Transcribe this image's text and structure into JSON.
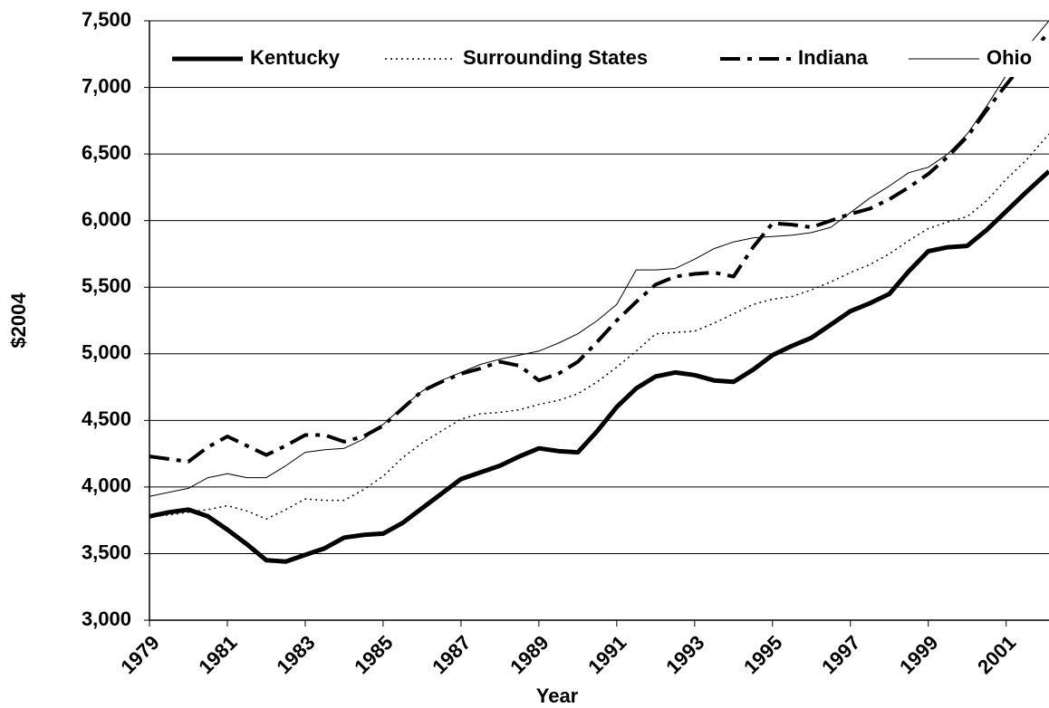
{
  "chart_data": {
    "type": "line",
    "x_label": "Year",
    "y_label": "$2004",
    "x": [
      1979,
      1979.5,
      1980,
      1980.5,
      1981,
      1981.5,
      1982,
      1982.5,
      1983,
      1983.5,
      1984,
      1984.5,
      1985,
      1985.5,
      1986,
      1986.5,
      1987,
      1987.5,
      1988,
      1988.5,
      1989,
      1989.5,
      1990,
      1990.5,
      1991,
      1991.5,
      1992,
      1992.5,
      1993,
      1993.5,
      1994,
      1994.5,
      1995,
      1995.5,
      1996,
      1996.5,
      1997,
      1997.5,
      1998,
      1998.5,
      1999,
      1999.5,
      2000,
      2000.5,
      2001,
      2001.5,
      2002.1
    ],
    "series": [
      {
        "name": "Kentucky",
        "color": "#000000",
        "width": 5,
        "dash": "none",
        "values": [
          3780,
          3810,
          3830,
          3780,
          3680,
          3570,
          3450,
          3440,
          3490,
          3540,
          3620,
          3640,
          3650,
          3730,
          3840,
          3950,
          4060,
          4110,
          4160,
          4230,
          4290,
          4270,
          4260,
          4420,
          4600,
          4740,
          4830,
          4860,
          4840,
          4800,
          4790,
          4880,
          4990,
          5060,
          5120,
          5220,
          5320,
          5380,
          5450,
          5620,
          5770,
          5800,
          5810,
          5930,
          6070,
          6210,
          6370
        ]
      },
      {
        "name": "Surrounding States",
        "color": "#000000",
        "width": 1.5,
        "dash": "2,4",
        "values": [
          3780,
          3790,
          3810,
          3830,
          3860,
          3820,
          3760,
          3830,
          3910,
          3900,
          3900,
          3980,
          4080,
          4220,
          4330,
          4420,
          4510,
          4550,
          4560,
          4580,
          4620,
          4650,
          4700,
          4790,
          4900,
          5020,
          5150,
          5160,
          5170,
          5230,
          5300,
          5370,
          5410,
          5430,
          5480,
          5540,
          5610,
          5670,
          5750,
          5850,
          5940,
          5990,
          6030,
          6150,
          6310,
          6450,
          6650
        ]
      },
      {
        "name": "Indiana",
        "color": "#000000",
        "width": 4,
        "dash": "22,8,5,8",
        "values": [
          4230,
          4210,
          4190,
          4300,
          4380,
          4310,
          4240,
          4310,
          4390,
          4390,
          4340,
          4380,
          4460,
          4590,
          4720,
          4790,
          4850,
          4890,
          4940,
          4910,
          4800,
          4850,
          4940,
          5090,
          5250,
          5390,
          5520,
          5580,
          5600,
          5610,
          5580,
          5800,
          5980,
          5970,
          5950,
          6000,
          6050,
          6090,
          6160,
          6250,
          6350,
          6480,
          6630,
          6830,
          7020,
          7200,
          7420
        ]
      },
      {
        "name": "Ohio",
        "color": "#000000",
        "width": 1,
        "dash": "none",
        "values": [
          3930,
          3960,
          3990,
          4070,
          4100,
          4070,
          4070,
          4160,
          4260,
          4280,
          4290,
          4360,
          4470,
          4600,
          4720,
          4800,
          4860,
          4920,
          4960,
          4990,
          5020,
          5080,
          5150,
          5250,
          5370,
          5630,
          5630,
          5640,
          5710,
          5790,
          5840,
          5870,
          5880,
          5890,
          5910,
          5950,
          6060,
          6170,
          6260,
          6360,
          6400,
          6500,
          6650,
          6860,
          7090,
          7290,
          7500
        ]
      }
    ],
    "xlim": [
      1979,
      2002.1
    ],
    "xticks": [
      1979,
      1981,
      1983,
      1985,
      1987,
      1989,
      1991,
      1993,
      1995,
      1997,
      1999,
      2001
    ],
    "ylim": [
      3000,
      7500
    ],
    "yticks": [
      {
        "value": 3000,
        "label": "3,000"
      },
      {
        "value": 3500,
        "label": "3,500"
      },
      {
        "value": 4000,
        "label": "4,000"
      },
      {
        "value": 4500,
        "label": "4,500"
      },
      {
        "value": 5000,
        "label": "5,000"
      },
      {
        "value": 5500,
        "label": "5,500"
      },
      {
        "value": 6000,
        "label": "6,000"
      },
      {
        "value": 6500,
        "label": "6,500"
      },
      {
        "value": 7000,
        "label": "7,000"
      },
      {
        "value": 7500,
        "label": "7,500"
      }
    ],
    "grid": true,
    "legend": "top"
  }
}
